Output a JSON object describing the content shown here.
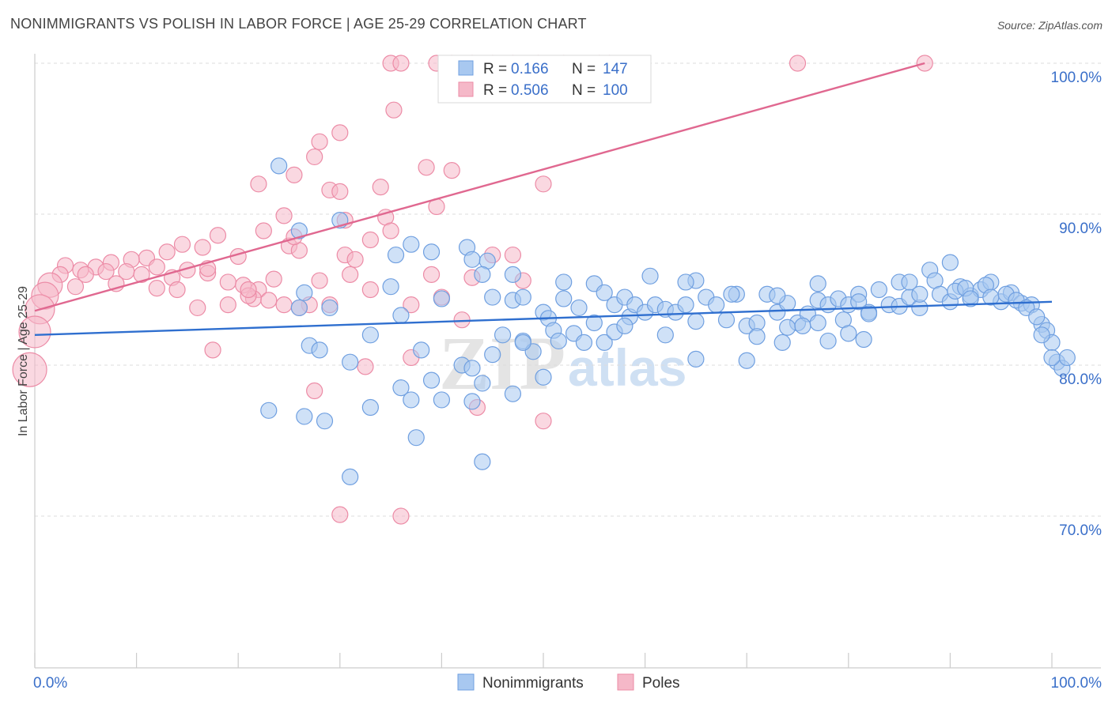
{
  "title": "NONIMMIGRANTS VS POLISH IN LABOR FORCE | AGE 25-29 CORRELATION CHART",
  "source": "Source: ZipAtlas.com",
  "watermark": {
    "zip": "ZIP",
    "atlas": "atlas"
  },
  "colors": {
    "blue_fill": "#a8c8f0",
    "blue_stroke": "#6f9fe0",
    "blue_line": "#2f6fcf",
    "pink_fill": "#f5b8c8",
    "pink_stroke": "#ec8ba6",
    "pink_line": "#e06890",
    "axis_text": "#3a6fc9",
    "grid": "#dddddd"
  },
  "legend": {
    "items": [
      {
        "r_label": "R =",
        "r_value": "0.166",
        "n_label": "N =",
        "n_value": "147",
        "color": "blue"
      },
      {
        "r_label": "R =",
        "r_value": "0.506",
        "n_label": "N =",
        "n_value": "100",
        "color": "pink"
      }
    ]
  },
  "bottom_legend": [
    "Nonimmigrants",
    "Poles"
  ],
  "chart_data": {
    "type": "scatter",
    "title": "NONIMMIGRANTS VS POLISH IN LABOR FORCE | AGE 25-29 CORRELATION CHART",
    "xlabel": "",
    "ylabel": "In Labor Force | Age 25-29",
    "xlim": [
      0,
      100
    ],
    "ylim": [
      60,
      102
    ],
    "x_tick_labels": [
      "0.0%",
      "100.0%"
    ],
    "y_ticks": [
      70,
      80,
      90,
      100
    ],
    "y_tick_labels": [
      "70.0%",
      "80.0%",
      "90.0%",
      "100.0%"
    ],
    "grid": true,
    "legend_position": "top-center",
    "series": [
      {
        "name": "Nonimmigrants",
        "color": "blue",
        "trend": {
          "x": [
            0,
            100
          ],
          "y": [
            82.0,
            84.2
          ]
        },
        "points": [
          [
            24,
            93.2
          ],
          [
            26,
            88.9
          ],
          [
            30,
            89.6
          ],
          [
            35.5,
            87.3
          ],
          [
            37,
            88
          ],
          [
            39,
            87.5
          ],
          [
            42.5,
            87.8
          ],
          [
            43,
            87
          ],
          [
            44.5,
            86.9
          ],
          [
            44,
            86
          ],
          [
            47,
            86
          ],
          [
            35,
            85.2
          ],
          [
            26.5,
            84.8
          ],
          [
            26,
            83.8
          ],
          [
            29,
            83.8
          ],
          [
            36,
            83.3
          ],
          [
            40,
            84.4
          ],
          [
            45,
            84.5
          ],
          [
            47,
            84.3
          ],
          [
            48,
            84.5
          ],
          [
            50,
            83.5
          ],
          [
            50.5,
            83.1
          ],
          [
            52,
            84.4
          ],
          [
            52,
            85.5
          ],
          [
            53.5,
            83.8
          ],
          [
            55,
            85.4
          ],
          [
            56,
            84.8
          ],
          [
            57,
            84
          ],
          [
            58,
            84.5
          ],
          [
            58.5,
            83.2
          ],
          [
            59,
            84
          ],
          [
            60,
            83.5
          ],
          [
            61,
            84
          ],
          [
            62,
            83.7
          ],
          [
            63,
            83.5
          ],
          [
            64,
            84
          ],
          [
            65,
            82.9
          ],
          [
            65,
            85.6
          ],
          [
            66,
            84.5
          ],
          [
            67,
            84
          ],
          [
            68,
            83
          ],
          [
            69,
            84.7
          ],
          [
            70,
            82.6
          ],
          [
            71,
            82.8
          ],
          [
            72,
            84.7
          ],
          [
            73,
            83.5
          ],
          [
            74,
            84.1
          ],
          [
            75,
            82.8
          ],
          [
            76,
            83.4
          ],
          [
            77,
            84.3
          ],
          [
            78,
            84
          ],
          [
            79,
            84.4
          ],
          [
            80,
            84
          ],
          [
            81,
            84.7
          ],
          [
            82,
            83.5
          ],
          [
            83,
            85
          ],
          [
            84,
            84
          ],
          [
            85,
            83.9
          ],
          [
            86,
            84.5
          ],
          [
            87,
            83.8
          ],
          [
            88,
            86.3
          ],
          [
            88.5,
            85.6
          ],
          [
            89,
            84.7
          ],
          [
            90,
            84.2
          ],
          [
            91,
            85.2
          ],
          [
            92,
            84.6
          ],
          [
            93,
            85
          ],
          [
            94,
            85.5
          ],
          [
            95,
            84.2
          ],
          [
            96,
            84.8
          ],
          [
            97,
            84.1
          ],
          [
            98,
            84
          ],
          [
            99,
            82.7
          ],
          [
            99.5,
            82.3
          ],
          [
            100,
            81.5
          ],
          [
            100.5,
            80.2
          ],
          [
            101,
            79.8
          ],
          [
            101.5,
            80.5
          ],
          [
            90,
            86.8
          ],
          [
            93.5,
            85.3
          ],
          [
            94,
            84.5
          ],
          [
            95.5,
            84.7
          ],
          [
            96.5,
            84.3
          ],
          [
            97.5,
            83.8
          ],
          [
            98.5,
            83.2
          ],
          [
            99,
            82
          ],
          [
            100,
            80.5
          ],
          [
            85,
            85.5
          ],
          [
            86,
            85.5
          ],
          [
            87,
            84.7
          ],
          [
            90.5,
            84.9
          ],
          [
            91.5,
            85.1
          ],
          [
            92,
            84.4
          ],
          [
            60.5,
            85.9
          ],
          [
            64,
            85.5
          ],
          [
            68.5,
            84.7
          ],
          [
            73,
            84.6
          ],
          [
            77,
            85.4
          ],
          [
            81,
            84.2
          ],
          [
            82,
            83.4
          ],
          [
            27,
            81.3
          ],
          [
            28,
            81
          ],
          [
            31,
            80.2
          ],
          [
            33,
            82
          ],
          [
            38,
            81
          ],
          [
            42,
            80
          ],
          [
            43,
            79.8
          ],
          [
            46,
            82
          ],
          [
            48,
            81.6
          ],
          [
            49,
            80.9
          ],
          [
            51,
            82.3
          ],
          [
            51.5,
            81.6
          ],
          [
            53,
            82.1
          ],
          [
            54,
            81.5
          ],
          [
            55,
            82.8
          ],
          [
            56,
            81.5
          ],
          [
            57,
            82.2
          ],
          [
            58,
            82.6
          ],
          [
            62,
            82
          ],
          [
            65,
            80.4
          ],
          [
            70,
            80.3
          ],
          [
            71,
            81.9
          ],
          [
            73.5,
            81.5
          ],
          [
            74,
            82.5
          ],
          [
            75.5,
            82.6
          ],
          [
            77,
            82.8
          ],
          [
            78,
            81.6
          ],
          [
            79.5,
            83
          ],
          [
            80,
            82.1
          ],
          [
            81.5,
            81.7
          ],
          [
            23,
            77
          ],
          [
            26.5,
            76.6
          ],
          [
            28.5,
            76.3
          ],
          [
            33,
            77.2
          ],
          [
            37,
            77.7
          ],
          [
            37.5,
            75.2
          ],
          [
            40,
            77.7
          ],
          [
            43,
            77.6
          ],
          [
            44,
            78.8
          ],
          [
            44,
            73.6
          ],
          [
            31,
            72.6
          ],
          [
            36,
            78.5
          ],
          [
            39,
            79
          ],
          [
            45,
            80.7
          ],
          [
            47,
            78.1
          ],
          [
            48,
            81.5
          ],
          [
            50,
            79.2
          ]
        ]
      },
      {
        "name": "Poles",
        "color": "pink",
        "trend": {
          "x": [
            0,
            87.5
          ],
          "y": [
            83.6,
            100.0
          ]
        },
        "points": [
          [
            35,
            100
          ],
          [
            36,
            100
          ],
          [
            39.5,
            100
          ],
          [
            41,
            100
          ],
          [
            43,
            100
          ],
          [
            45,
            100
          ],
          [
            47,
            100
          ],
          [
            49.5,
            100
          ],
          [
            52,
            100
          ],
          [
            55.5,
            100
          ],
          [
            56.5,
            100
          ],
          [
            75,
            100
          ],
          [
            87.5,
            100
          ],
          [
            35.3,
            96.9
          ],
          [
            30,
            95.4
          ],
          [
            28,
            94.8
          ],
          [
            27.5,
            93.8
          ],
          [
            38.5,
            93.1
          ],
          [
            41,
            92.9
          ],
          [
            25.5,
            92.6
          ],
          [
            22,
            92
          ],
          [
            34,
            91.8
          ],
          [
            29,
            91.6
          ],
          [
            30,
            91.5
          ],
          [
            50,
            92
          ],
          [
            39.5,
            90.5
          ],
          [
            24.5,
            89.9
          ],
          [
            30.5,
            89.6
          ],
          [
            34.5,
            89.8
          ],
          [
            35,
            88.9
          ],
          [
            22.5,
            88.9
          ],
          [
            18,
            88.6
          ],
          [
            33,
            88.3
          ],
          [
            25,
            87.9
          ],
          [
            26,
            87.6
          ],
          [
            30.5,
            87.3
          ],
          [
            31.5,
            87
          ],
          [
            45,
            87.3
          ],
          [
            47,
            87.3
          ],
          [
            16.5,
            87.8
          ],
          [
            14.5,
            88
          ],
          [
            13,
            87.5
          ],
          [
            11,
            87.1
          ],
          [
            9.5,
            87
          ],
          [
            7.5,
            86.8
          ],
          [
            6,
            86.5
          ],
          [
            4.5,
            86.3
          ],
          [
            3,
            86.6
          ],
          [
            2.5,
            86
          ],
          [
            1.5,
            85.3
          ],
          [
            1,
            84.6
          ],
          [
            0.5,
            83.7
          ],
          [
            0,
            82.2
          ],
          [
            -0.5,
            79.7
          ],
          [
            5,
            86
          ],
          [
            7,
            86.2
          ],
          [
            9,
            86.2
          ],
          [
            12,
            86.5
          ],
          [
            15,
            86.3
          ],
          [
            17,
            86.1
          ],
          [
            19,
            85.5
          ],
          [
            20.5,
            85.3
          ],
          [
            22,
            85
          ],
          [
            23.5,
            85.7
          ],
          [
            4,
            85.2
          ],
          [
            8,
            85.4
          ],
          [
            10.5,
            86
          ],
          [
            13.5,
            85.8
          ],
          [
            21.5,
            84.4
          ],
          [
            23,
            84.3
          ],
          [
            24.5,
            84
          ],
          [
            27,
            84
          ],
          [
            37,
            84
          ],
          [
            39,
            86
          ],
          [
            43,
            85.8
          ],
          [
            48,
            85.6
          ],
          [
            16,
            83.8
          ],
          [
            19,
            84
          ],
          [
            21,
            84.6
          ],
          [
            12,
            85.1
          ],
          [
            17.5,
            81
          ],
          [
            26,
            83.8
          ],
          [
            21,
            85
          ],
          [
            31,
            86
          ],
          [
            14,
            85
          ],
          [
            17,
            86.4
          ],
          [
            20,
            87.2
          ],
          [
            25.5,
            88.5
          ],
          [
            28,
            85.6
          ],
          [
            29,
            84
          ],
          [
            27.5,
            78.3
          ],
          [
            32.5,
            79.9
          ],
          [
            37,
            80.5
          ],
          [
            43.5,
            77.2
          ],
          [
            50,
            76.3
          ],
          [
            30,
            70.1
          ],
          [
            36,
            70
          ],
          [
            40,
            84.5
          ],
          [
            42,
            83
          ],
          [
            33,
            85
          ]
        ]
      }
    ]
  }
}
